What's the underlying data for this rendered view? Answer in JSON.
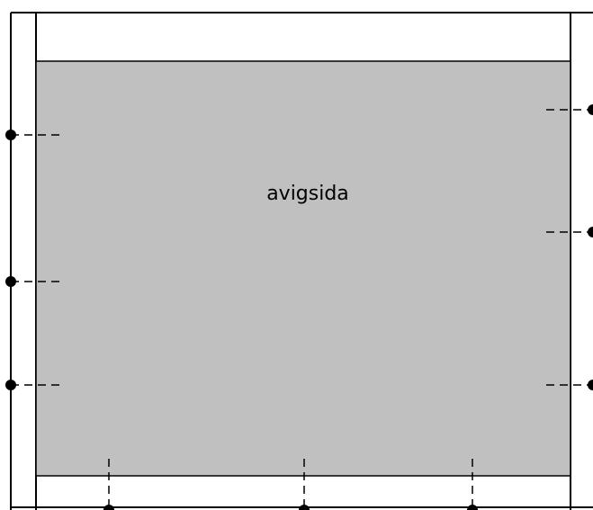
{
  "diagram": {
    "label": "avigsida",
    "colors": {
      "panel_fill": "#c0c0c0",
      "line": "#000000",
      "background": "#ffffff"
    }
  }
}
